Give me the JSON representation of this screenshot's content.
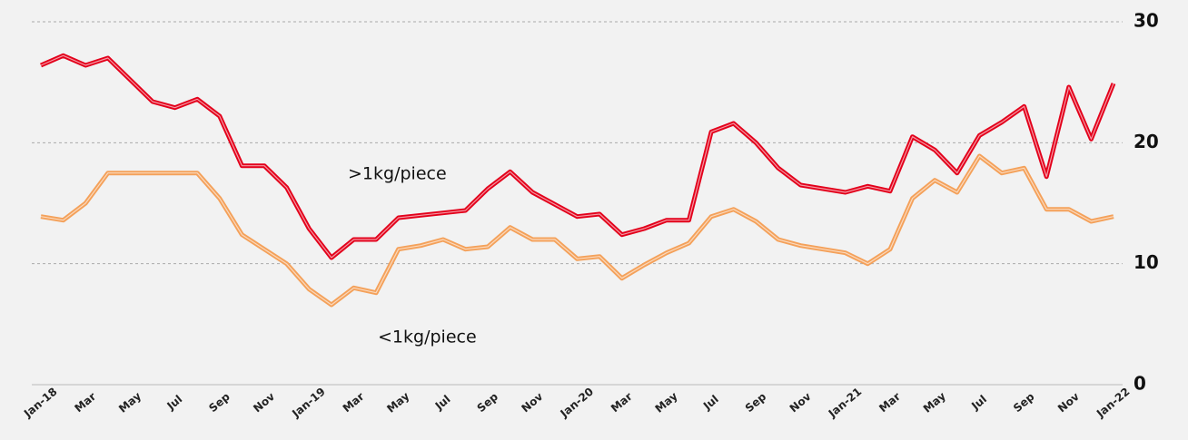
{
  "chart_data": {
    "type": "line",
    "categories": [
      "Jan-18",
      null,
      "Mar",
      null,
      "May",
      null,
      "Jul",
      null,
      "Sep",
      null,
      "Nov",
      null,
      "Jan-19",
      null,
      "Mar",
      null,
      "May",
      null,
      "Jul",
      null,
      "Sep",
      null,
      "Nov",
      null,
      "Jan-20",
      null,
      "Mar",
      null,
      "May",
      null,
      "Jul",
      null,
      "Sep",
      null,
      "Nov",
      null,
      "Jan-21",
      null,
      "Mar",
      null,
      "May",
      null,
      "Jul",
      null,
      "Sep",
      null,
      "Nov",
      null,
      "Jan-22"
    ],
    "series": [
      {
        "name": ">1kg/piece",
        "color": "#e3001b",
        "values": [
          26.4,
          27.2,
          26.4,
          27.0,
          25.2,
          23.4,
          22.9,
          23.6,
          22.2,
          18.1,
          18.1,
          16.3,
          12.9,
          10.5,
          12.0,
          12.0,
          13.8,
          14.0,
          14.2,
          14.4,
          16.2,
          17.6,
          15.9,
          14.9,
          13.9,
          14.1,
          12.4,
          12.9,
          13.6,
          13.6,
          20.9,
          21.6,
          20.0,
          17.9,
          16.5,
          16.2,
          15.9,
          16.4,
          16.0,
          20.5,
          19.4,
          17.5,
          20.6,
          21.7,
          23.0,
          17.2,
          24.6,
          20.3,
          24.9
        ]
      },
      {
        "name": "<1kg/piece",
        "color": "#f4a15a",
        "values": [
          13.9,
          13.6,
          15.0,
          17.5,
          17.5,
          17.5,
          17.5,
          17.5,
          15.4,
          12.4,
          11.2,
          10.0,
          7.9,
          6.6,
          8.0,
          7.6,
          11.2,
          11.5,
          12.0,
          11.2,
          11.4,
          13.0,
          12.0,
          12.0,
          10.4,
          10.6,
          8.8,
          9.9,
          10.9,
          11.7,
          13.9,
          14.5,
          13.5,
          12.0,
          11.5,
          11.2,
          10.9,
          10.0,
          11.2,
          15.4,
          16.9,
          15.9,
          18.9,
          17.5,
          17.9,
          14.5,
          14.5,
          13.5,
          13.9
        ]
      }
    ],
    "ylim": [
      0,
      30
    ],
    "yticks": [
      0,
      10,
      20,
      30
    ],
    "grid": true
  }
}
